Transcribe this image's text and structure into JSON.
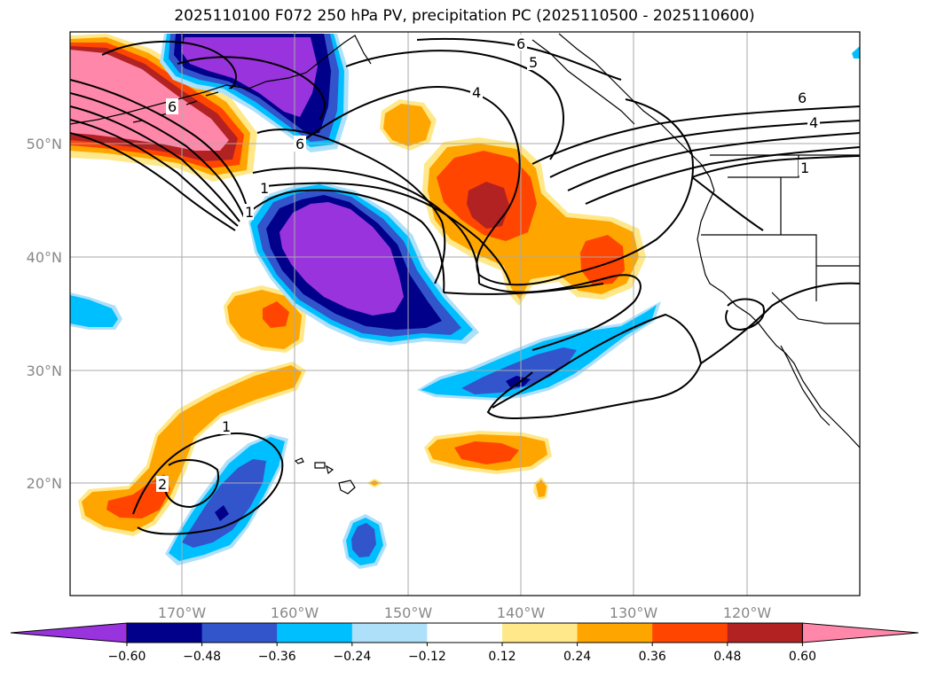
{
  "title": "2025110100 F072 250 hPa PV, precipitation PC (2025110500 - 2025110600)",
  "longitude_ticks": [
    "170°W",
    "160°W",
    "150°W",
    "140°W",
    "130°W",
    "120°W"
  ],
  "latitude_ticks": [
    "50°N",
    "40°N",
    "30°N",
    "20°N"
  ],
  "colorbar": {
    "bins": [
      {
        "color": "#9933dd"
      },
      {
        "color": "#00008b"
      },
      {
        "color": "#3355cc"
      },
      {
        "color": "#00bfff"
      },
      {
        "color": "#aee0fa"
      },
      {
        "color": "#ffffff"
      },
      {
        "color": "#ffe88a"
      },
      {
        "color": "#ffa500"
      },
      {
        "color": "#ff4500"
      },
      {
        "color": "#b22222"
      },
      {
        "color": "#ff88aa"
      }
    ],
    "labels": [
      "−0.60",
      "−0.48",
      "−0.36",
      "−0.24",
      "−0.12",
      "0.12",
      "0.24",
      "0.36",
      "0.48",
      "0.60"
    ]
  },
  "contour_labels": [
    "6",
    "5",
    "4",
    "6",
    "4",
    "1",
    "6",
    "6",
    "1",
    "1",
    "1",
    "2"
  ],
  "colors": {
    "land_outline": "#000000",
    "grid": "#aaaaaa"
  }
}
